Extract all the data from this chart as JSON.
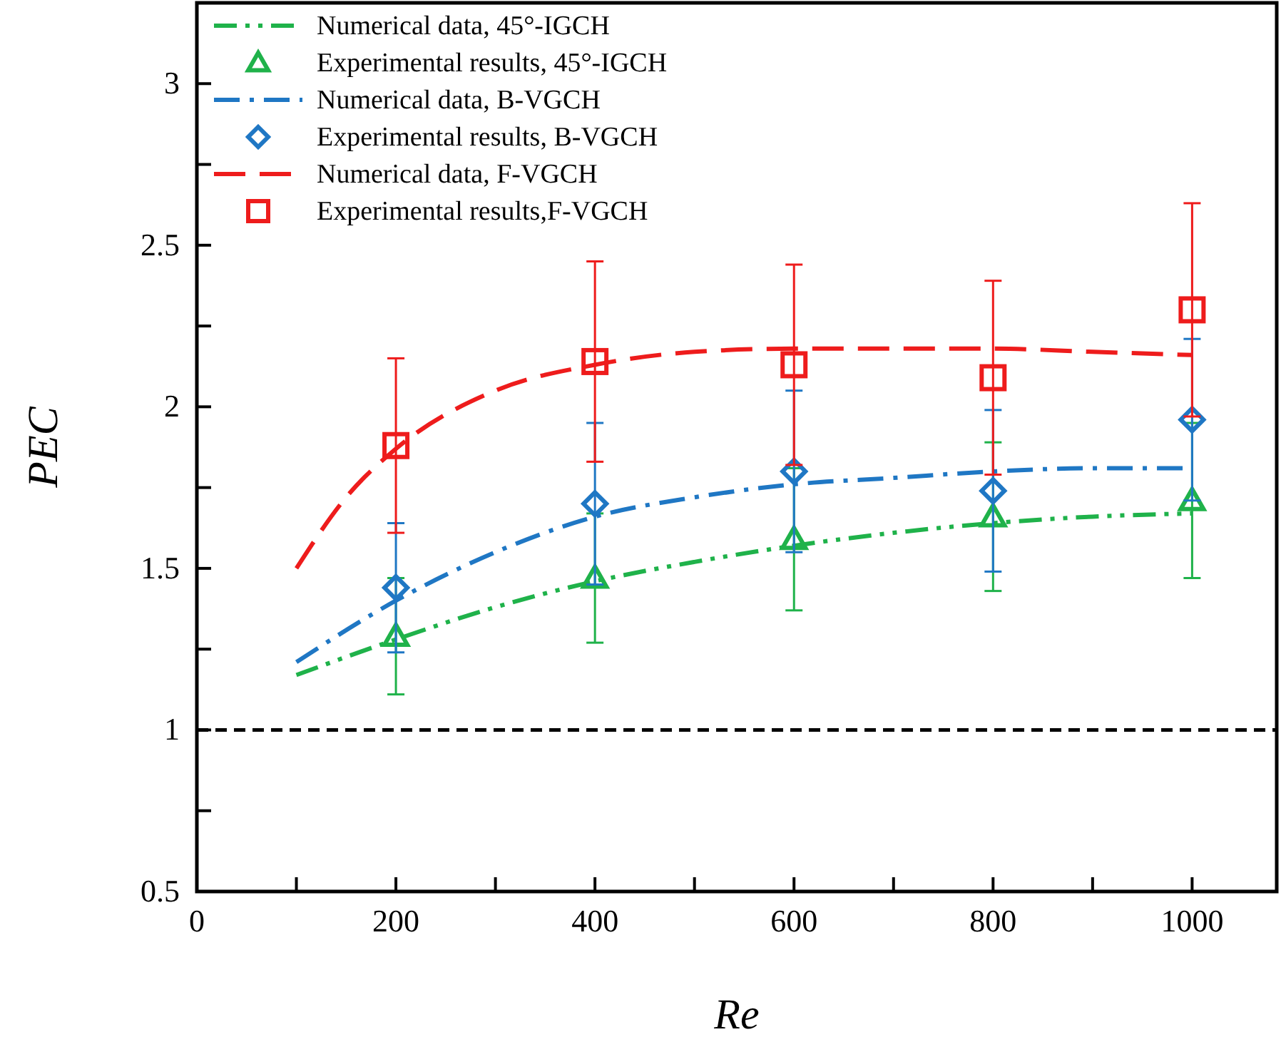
{
  "chart_data": {
    "type": "line",
    "xlabel": "Re",
    "ylabel": "PEC",
    "xlim": [
      0,
      1085
    ],
    "ylim": [
      0.5,
      3.25
    ],
    "xticks": [
      0,
      {
        "value": 100,
        "label": null
      },
      200,
      {
        "value": 300,
        "label": null
      },
      400,
      {
        "value": 500,
        "label": null
      },
      600,
      {
        "value": 700,
        "label": null
      },
      800,
      {
        "value": 900,
        "label": null
      },
      1000
    ],
    "yticks": [
      0.5,
      {
        "value": 0.75,
        "label": null
      },
      1,
      {
        "value": 1.25,
        "label": null
      },
      1.5,
      {
        "value": 1.75,
        "label": null
      },
      2,
      {
        "value": 2.25,
        "label": null
      },
      2.5,
      {
        "value": 2.75,
        "label": null
      },
      3
    ],
    "grid": false,
    "legend": "top left",
    "ref_lines": [
      {
        "axis": "y",
        "value": 1,
        "color": "#000000",
        "line_style": "dashed"
      }
    ],
    "series": [
      {
        "name": "Numerical data, 45°-IGCH",
        "color": "#1fb24a",
        "line_style": "dashdotdot",
        "marker": "none",
        "x": [
          100,
          200,
          300,
          400,
          500,
          600,
          700,
          800,
          900,
          1000
        ],
        "values": [
          1.17,
          1.28,
          1.38,
          1.46,
          1.52,
          1.57,
          1.61,
          1.64,
          1.66,
          1.67
        ]
      },
      {
        "name": "Experimental results, 45°-IGCH",
        "type": "scatter",
        "color": "#1fb24a",
        "marker": "triangle",
        "x": [
          200,
          400,
          600,
          800,
          1000
        ],
        "values": [
          1.29,
          1.47,
          1.59,
          1.66,
          1.71
        ],
        "errors": [
          0.18,
          0.2,
          0.22,
          0.23,
          0.24
        ]
      },
      {
        "name": "Numerical data, B-VGCH",
        "color": "#1f77c4",
        "line_style": "dashdot",
        "marker": "none",
        "x": [
          100,
          200,
          300,
          400,
          500,
          600,
          700,
          800,
          900,
          1000
        ],
        "values": [
          1.21,
          1.4,
          1.55,
          1.66,
          1.72,
          1.76,
          1.78,
          1.8,
          1.81,
          1.81
        ]
      },
      {
        "name": "Experimental results, B-VGCH",
        "type": "scatter",
        "color": "#1f77c4",
        "marker": "diamond",
        "x": [
          200,
          400,
          600,
          800,
          1000
        ],
        "values": [
          1.44,
          1.7,
          1.8,
          1.74,
          1.96
        ],
        "errors": [
          0.2,
          0.25,
          0.25,
          0.25,
          0.25
        ]
      },
      {
        "name": "Numerical data, F-VGCH",
        "color": "#ee1c1c",
        "line_style": "dashed",
        "marker": "none",
        "x": [
          100,
          150,
          200,
          300,
          400,
          500,
          600,
          700,
          800,
          900,
          1000
        ],
        "values": [
          1.5,
          1.72,
          1.87,
          2.05,
          2.13,
          2.17,
          2.18,
          2.18,
          2.18,
          2.17,
          2.16
        ]
      },
      {
        "name": "Experimental results,F-VGCH",
        "type": "scatter",
        "color": "#ee1c1c",
        "marker": "square",
        "x": [
          200,
          400,
          600,
          800,
          1000
        ],
        "values": [
          1.88,
          2.14,
          2.13,
          2.09,
          2.3
        ],
        "errors": [
          0.27,
          0.31,
          0.31,
          0.3,
          0.33
        ]
      }
    ]
  }
}
